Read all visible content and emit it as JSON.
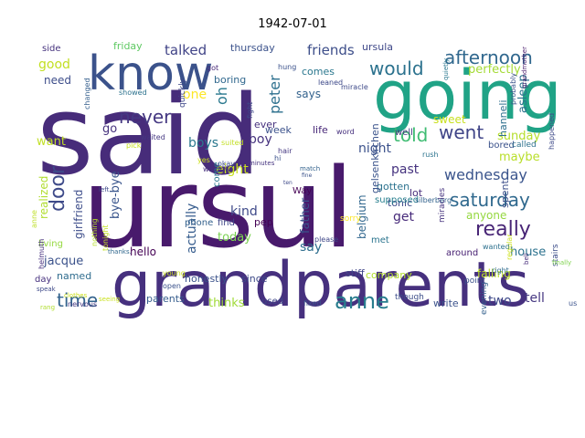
{
  "chart_data": {
    "type": "wordcloud",
    "title": "1942-07-01",
    "background": "#ffffff",
    "colormap": "viridis",
    "words": [
      {
        "text": "said",
        "color": "#472c7a"
      },
      {
        "text": "ursul",
        "color": "#481a6c"
      },
      {
        "text": "grandparents",
        "color": "#46307e"
      },
      {
        "text": "going",
        "color": "#20a386"
      },
      {
        "text": "know",
        "color": "#3b528b"
      },
      {
        "text": "afternoon",
        "color": "#31688e"
      },
      {
        "text": "would",
        "color": "#2c728e"
      },
      {
        "text": "saturday",
        "color": "#30698e"
      },
      {
        "text": "really",
        "color": "#482576"
      },
      {
        "text": "anne",
        "color": "#287d8e"
      },
      {
        "text": "time",
        "color": "#33638d"
      },
      {
        "text": "never",
        "color": "#453882"
      },
      {
        "text": "went",
        "color": "#404588"
      },
      {
        "text": "told",
        "color": "#3fbc73"
      },
      {
        "text": "door",
        "color": "#3e4a89"
      },
      {
        "text": "wednesday",
        "color": "#3a548c"
      },
      {
        "text": "talked",
        "color": "#414487"
      },
      {
        "text": "friends",
        "color": "#3d4e8a"
      },
      {
        "text": "peter",
        "color": "#2d708e"
      },
      {
        "text": "perfectly",
        "color": "#a5db36"
      },
      {
        "text": "sunday",
        "color": "#b5de2b"
      },
      {
        "text": "maybe",
        "color": "#b8de29"
      },
      {
        "text": "eight",
        "color": "#c8e020"
      },
      {
        "text": "boys",
        "color": "#2a788e"
      },
      {
        "text": "boy",
        "color": "#46337e"
      },
      {
        "text": "night",
        "color": "#3b518b"
      },
      {
        "text": "past",
        "color": "#46337f"
      },
      {
        "text": "kind",
        "color": "#3e4989"
      },
      {
        "text": "get",
        "color": "#472a7a"
      },
      {
        "text": "today",
        "color": "#7ad151"
      },
      {
        "text": "jacque",
        "color": "#3b528b"
      },
      {
        "text": "house",
        "color": "#2c728e"
      },
      {
        "text": "tell",
        "color": "#453781"
      },
      {
        "text": "two",
        "color": "#3e4989"
      },
      {
        "text": "say",
        "color": "#2e6e8e"
      },
      {
        "text": "anyone",
        "color": "#95d840"
      },
      {
        "text": "good",
        "color": "#c2df23"
      },
      {
        "text": "need",
        "color": "#3d4d8a"
      },
      {
        "text": "want",
        "color": "#c0df25"
      },
      {
        "text": "go",
        "color": "#46327e"
      },
      {
        "text": "oh",
        "color": "#2a788e"
      },
      {
        "text": "one",
        "color": "#fde725"
      },
      {
        "text": "father",
        "color": "#3a548c"
      },
      {
        "text": "actually",
        "color": "#365c8d"
      },
      {
        "text": "bye-bye",
        "color": "#39558c"
      },
      {
        "text": "says",
        "color": "#33628d"
      },
      {
        "text": "friday",
        "color": "#5ec962"
      },
      {
        "text": "thursday",
        "color": "#3b528b"
      },
      {
        "text": "ursula",
        "color": "#3f4889"
      },
      {
        "text": "side",
        "color": "#46337e"
      },
      {
        "text": "boring",
        "color": "#31688e"
      },
      {
        "text": "thinks",
        "color": "#a0da39"
      },
      {
        "text": "life",
        "color": "#482878"
      },
      {
        "text": "well",
        "color": "#453781"
      },
      {
        "text": "honestly",
        "color": "#3b528b"
      },
      {
        "text": "hello",
        "color": "#440154"
      },
      {
        "text": "named",
        "color": "#2f6c8e"
      },
      {
        "text": "day",
        "color": "#46307e"
      },
      {
        "text": "falling",
        "color": "#bddf26"
      },
      {
        "text": "stiff",
        "color": "#404588"
      },
      {
        "text": "since",
        "color": "#3e4a89"
      },
      {
        "text": "used",
        "color": "#3f4788"
      },
      {
        "text": "parents",
        "color": "#365d8d"
      },
      {
        "text": "company",
        "color": "#b2dd2d"
      },
      {
        "text": "write",
        "color": "#3b528b"
      },
      {
        "text": "comes",
        "color": "#2a778e"
      },
      {
        "text": "ever",
        "color": "#46317e"
      },
      {
        "text": "tonic",
        "color": "#3e4c8a"
      },
      {
        "text": "pep",
        "color": "#440154"
      },
      {
        "text": "find",
        "color": "#3f4788"
      },
      {
        "text": "Way",
        "color": "#440154"
      },
      {
        "text": "sweet",
        "color": "#c8e020"
      },
      {
        "text": "bored",
        "color": "#3b528b"
      },
      {
        "text": "gotten",
        "color": "#2c728e"
      },
      {
        "text": "lot",
        "color": "#472d7b"
      },
      {
        "text": "met",
        "color": "#2b748e"
      },
      {
        "text": "spent",
        "color": "#3c4f8a"
      },
      {
        "text": "around",
        "color": "#482173"
      },
      {
        "text": "asleep",
        "color": "#2c738e"
      },
      {
        "text": "week",
        "color": "#3b518b"
      },
      {
        "text": "belgium",
        "color": "#31678e"
      },
      {
        "text": "girlfriend",
        "color": "#3d4d8a"
      },
      {
        "text": "realized",
        "color": "#b0dd2f"
      },
      {
        "text": "living",
        "color": "#95d840"
      },
      {
        "text": "gelsenkirchen",
        "color": "#3a538b"
      },
      {
        "text": "hanneli",
        "color": "#2e6f8e"
      },
      {
        "text": "called",
        "color": "#2d718e"
      },
      {
        "text": "evening",
        "color": "#34618d"
      },
      {
        "text": "supposed",
        "color": "#277f8e"
      },
      {
        "text": "window",
        "color": "#46307e"
      },
      {
        "text": "phone",
        "color": "#34618d"
      },
      {
        "text": "come",
        "color": "#2a788e"
      },
      {
        "text": "quickly",
        "color": "#3f4889"
      },
      {
        "text": "waited",
        "color": "#453882"
      },
      {
        "text": "miracle",
        "color": "#3e4a89"
      },
      {
        "text": "showed",
        "color": "#2c728e"
      },
      {
        "text": "changed",
        "color": "#355f8d"
      },
      {
        "text": "helmuth",
        "color": "#46307e"
      },
      {
        "text": "fight",
        "color": "#3e4989"
      },
      {
        "text": "young",
        "color": "#cae11f"
      },
      {
        "text": "open",
        "color": "#3b528b"
      },
      {
        "text": "speak",
        "color": "#3e4989"
      },
      {
        "text": "nervous",
        "color": "#453882"
      },
      {
        "text": "thanks.",
        "color": "#31688e"
      },
      {
        "text": "point",
        "color": "#3b528b"
      },
      {
        "text": "though",
        "color": "#3d4e8a"
      },
      {
        "text": "right",
        "color": "#2f6b8e"
      },
      {
        "text": "stairs",
        "color": "#3d4e8a"
      },
      {
        "text": "bell",
        "color": "#472d7b"
      },
      {
        "text": "finally",
        "color": "#7fd34e"
      },
      {
        "text": "wanted",
        "color": "#2d718e"
      },
      {
        "text": "match",
        "color": "#33628d"
      },
      {
        "text": "please",
        "color": "#3f4788"
      },
      {
        "text": "fixed",
        "color": "#3b528b"
      },
      {
        "text": "minutes",
        "color": "#463480"
      },
      {
        "text": "rush",
        "color": "#2c738e"
      },
      {
        "text": "word",
        "color": "#46307e"
      },
      {
        "text": "hair",
        "color": "#453882"
      },
      {
        "text": "hi",
        "color": "#3b528b"
      },
      {
        "text": "silberberg",
        "color": "#33638d"
      },
      {
        "text": "pick",
        "color": "#c8e020"
      },
      {
        "text": "suited",
        "color": "#c2df23"
      },
      {
        "text": "okay",
        "color": "#3e4c8a"
      },
      {
        "text": "yes",
        "color": "#cde11d"
      },
      {
        "text": "got",
        "color": "#482878"
      },
      {
        "text": "hung",
        "color": "#3b518b"
      },
      {
        "text": "leaned",
        "color": "#3e4989"
      },
      {
        "text": "probably",
        "color": "#3b528b"
      },
      {
        "text": "happened",
        "color": "#3e4a89"
      },
      {
        "text": "quietly",
        "color": "#2a778e"
      },
      {
        "text": "nothing",
        "color": "#b5de2b"
      },
      {
        "text": "tonight",
        "color": "#c2df23"
      },
      {
        "text": "sorry",
        "color": "#fde725"
      },
      {
        "text": "regular",
        "color": "#cde11d"
      },
      {
        "text": "miracles",
        "color": "#46337f"
      },
      {
        "text": "grandmother",
        "color": "#481a6c"
      },
      {
        "text": "anne",
        "color": "#bddf26"
      },
      {
        "text": "seeing",
        "color": "#cae11f"
      },
      {
        "text": "fine",
        "color": "#3b528b"
      },
      {
        "text": "ten",
        "color": "#3e4989"
      },
      {
        "text": "us",
        "color": "#3b528b"
      },
      {
        "text": "rang",
        "color": "#b0dd2f"
      },
      {
        "text": "clothes",
        "color": "#cde11d"
      },
      {
        "text": "left",
        "color": "#3e4989"
      }
    ]
  }
}
